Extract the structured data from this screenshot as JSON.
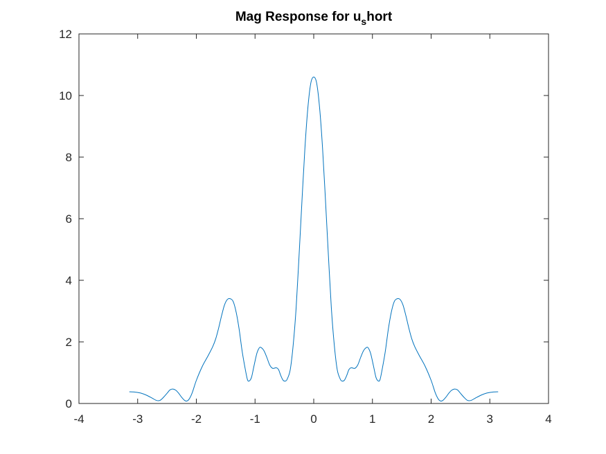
{
  "chart_data": {
    "type": "line",
    "title": "Mag Response for u",
    "title_subscript": "s",
    "title_suffix": "hort",
    "xlabel": "",
    "ylabel": "",
    "xlim": [
      -4,
      4
    ],
    "ylim": [
      0,
      12
    ],
    "xticks": [
      -4,
      -3,
      -2,
      -1,
      0,
      1,
      2,
      3,
      4
    ],
    "yticks": [
      0,
      2,
      4,
      6,
      8,
      10,
      12
    ],
    "xtick_labels": [
      "-4",
      "-3",
      "-2",
      "-1",
      "0",
      "1",
      "2",
      "3",
      "4"
    ],
    "ytick_labels": [
      "0",
      "2",
      "4",
      "6",
      "8",
      "10",
      "12"
    ],
    "grid": false,
    "legend": "none",
    "line_color": "#0072BD",
    "axis_color": "#262626",
    "series": [
      {
        "x": [
          0,
          0.05,
          0.1,
          0.15,
          0.2,
          0.25,
          0.3,
          0.35,
          0.4,
          0.45,
          0.48,
          0.52,
          0.56,
          0.6,
          0.64,
          0.7,
          0.75,
          0.8,
          0.85,
          0.9,
          0.93,
          0.97,
          1.02,
          1.06,
          1.1,
          1.13,
          1.17,
          1.22,
          1.27,
          1.32,
          1.37,
          1.42,
          1.47,
          1.52,
          1.57,
          1.62,
          1.67,
          1.72,
          1.8,
          1.9,
          2.0,
          2.07,
          2.12,
          2.16,
          2.2,
          2.25,
          2.3,
          2.35,
          2.4,
          2.45,
          2.5,
          2.56,
          2.62,
          2.68,
          2.75,
          2.85,
          2.95,
          3.05,
          3.1416
        ],
        "y": [
          10.6,
          10.4,
          9.6,
          8.3,
          6.6,
          4.8,
          3.1,
          1.9,
          1.1,
          0.8,
          0.73,
          0.75,
          0.9,
          1.1,
          1.16,
          1.14,
          1.25,
          1.5,
          1.72,
          1.82,
          1.8,
          1.62,
          1.2,
          0.85,
          0.73,
          0.78,
          1.15,
          1.7,
          2.4,
          2.95,
          3.3,
          3.4,
          3.38,
          3.2,
          2.85,
          2.45,
          2.1,
          1.85,
          1.55,
          1.2,
          0.75,
          0.35,
          0.15,
          0.08,
          0.1,
          0.2,
          0.33,
          0.43,
          0.47,
          0.44,
          0.33,
          0.2,
          0.1,
          0.1,
          0.17,
          0.27,
          0.34,
          0.37,
          0.38
        ]
      }
    ],
    "mirror_about_zero": true
  }
}
